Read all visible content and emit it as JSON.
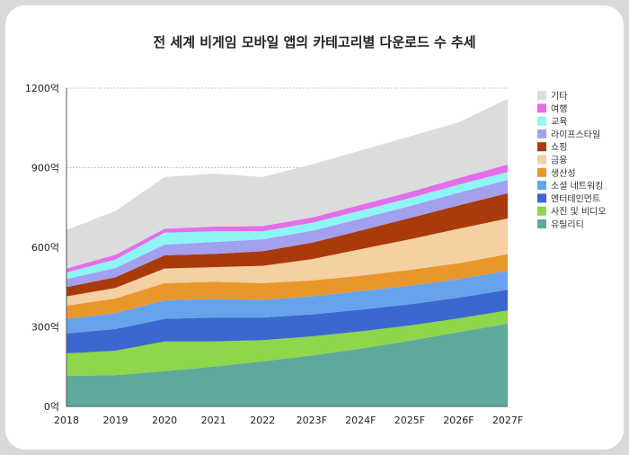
{
  "chart_data": {
    "type": "area",
    "stacked": true,
    "title": "전 세계 비게임 모바일 앱의 카테고리별 다운로드 수 추세",
    "xlabel": "",
    "ylabel": "",
    "categories": [
      "2018",
      "2019",
      "2020",
      "2021",
      "2022",
      "2023F",
      "2024F",
      "2025F",
      "2026F",
      "2027F"
    ],
    "ylim": [
      0,
      1200
    ],
    "yticks": [
      0,
      300,
      600,
      900,
      1200
    ],
    "ytick_labels": [
      "0억",
      "300억",
      "600억",
      "900억",
      "1200억"
    ],
    "grid": true,
    "legend_position": "right",
    "series": [
      {
        "name": "유틸리티",
        "color": "#5fa89c",
        "values": [
          115,
          118,
          133,
          150,
          170,
          192,
          218,
          248,
          280,
          312
        ]
      },
      {
        "name": "사진 및 비디오",
        "color": "#8ed64a",
        "values": [
          85,
          92,
          112,
          95,
          80,
          72,
          65,
          57,
          52,
          50
        ]
      },
      {
        "name": "엔터테인먼트",
        "color": "#3c67cf",
        "values": [
          75,
          82,
          85,
          90,
          85,
          83,
          82,
          80,
          78,
          78
        ]
      },
      {
        "name": "소셜 네트워킹",
        "color": "#67a3ec",
        "values": [
          55,
          60,
          70,
          70,
          67,
          68,
          70,
          70,
          70,
          72
        ]
      },
      {
        "name": "생산성",
        "color": "#e8982a",
        "values": [
          50,
          55,
          65,
          65,
          63,
          60,
          58,
          60,
          60,
          62
        ]
      },
      {
        "name": "금융",
        "color": "#f4d0a2",
        "values": [
          35,
          40,
          55,
          55,
          65,
          80,
          100,
          115,
          130,
          135
        ]
      },
      {
        "name": "쇼핑",
        "color": "#a93a0a",
        "values": [
          35,
          40,
          50,
          50,
          55,
          62,
          70,
          80,
          88,
          95
        ]
      },
      {
        "name": "라이프스타일",
        "color": "#a3a0f0",
        "values": [
          30,
          35,
          40,
          45,
          45,
          45,
          45,
          45,
          48,
          50
        ]
      },
      {
        "name": "교육",
        "color": "#8ef5f5",
        "values": [
          25,
          32,
          45,
          40,
          30,
          30,
          30,
          30,
          30,
          30
        ]
      },
      {
        "name": "여행",
        "color": "#e46ee9",
        "values": [
          15,
          18,
          15,
          18,
          20,
          20,
          22,
          23,
          25,
          28
        ]
      },
      {
        "name": "기타",
        "color": "#dcdcdc",
        "values": [
          145,
          165,
          195,
          200,
          185,
          200,
          205,
          210,
          210,
          248
        ]
      }
    ]
  }
}
